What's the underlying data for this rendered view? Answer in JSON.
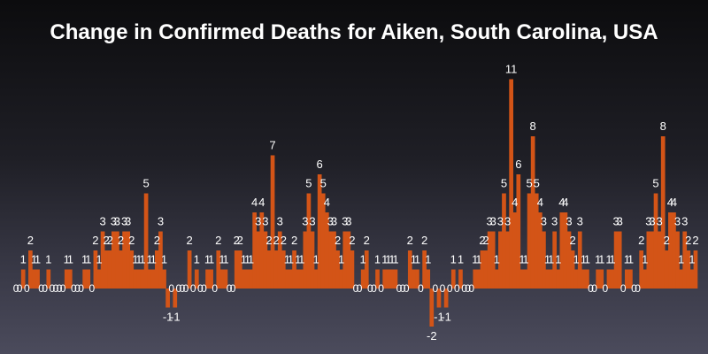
{
  "chart_data": {
    "type": "bar",
    "title": "Change in Confirmed Deaths for Aiken, South Carolina, USA",
    "xlabel": "",
    "ylabel": "",
    "ylim": [
      -2,
      11
    ],
    "grid": false,
    "legend": "none",
    "colors": {
      "bar": "#d35417",
      "label": "#ffffff",
      "background_top": "#0c0c0e",
      "background_bottom": "#4b4b5c"
    },
    "values": [
      0,
      0,
      1,
      0,
      2,
      1,
      1,
      0,
      0,
      1,
      0,
      0,
      0,
      0,
      1,
      1,
      0,
      0,
      0,
      1,
      1,
      0,
      2,
      1,
      3,
      2,
      2,
      3,
      3,
      2,
      3,
      3,
      2,
      1,
      1,
      1,
      5,
      1,
      1,
      2,
      3,
      1,
      -1,
      0,
      -1,
      0,
      0,
      0,
      2,
      0,
      1,
      0,
      0,
      1,
      1,
      0,
      2,
      1,
      1,
      0,
      0,
      2,
      2,
      1,
      1,
      1,
      4,
      3,
      4,
      3,
      2,
      7,
      2,
      3,
      2,
      1,
      1,
      2,
      1,
      1,
      3,
      5,
      3,
      1,
      6,
      5,
      4,
      3,
      3,
      2,
      1,
      3,
      3,
      2,
      0,
      0,
      1,
      2,
      0,
      0,
      1,
      0,
      1,
      1,
      1,
      1,
      0,
      0,
      0,
      2,
      1,
      1,
      0,
      2,
      1,
      -2,
      0,
      -1,
      0,
      -1,
      0,
      1,
      0,
      1,
      0,
      0,
      0,
      1,
      1,
      2,
      2,
      3,
      3,
      1,
      3,
      5,
      3,
      11,
      4,
      6,
      1,
      1,
      5,
      8,
      5,
      4,
      3,
      1,
      1,
      3,
      1,
      4,
      4,
      3,
      2,
      1,
      3,
      1,
      1,
      0,
      0,
      1,
      1,
      0,
      1,
      1,
      3,
      3,
      0,
      1,
      1,
      0,
      0,
      2,
      1,
      3,
      3,
      5,
      3,
      8,
      2,
      4,
      4,
      3,
      1,
      3,
      2,
      1,
      2
    ]
  }
}
